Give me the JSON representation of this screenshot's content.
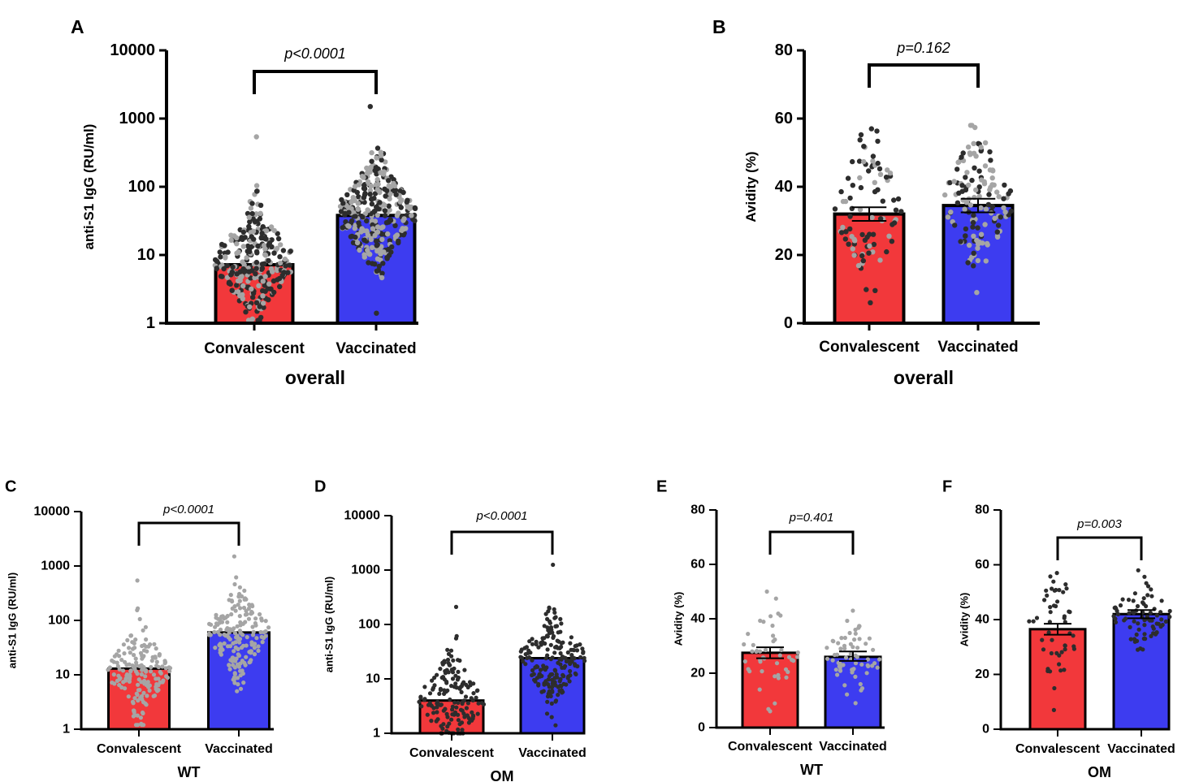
{
  "figure": {
    "panel_count": 6
  },
  "colors": {
    "convalescent_bar": "#f2383b",
    "vaccinated_bar": "#3d3cf0",
    "dot_light": "#a5a5a5",
    "dot_dark": "#2d2d2d",
    "axis": "#000000"
  },
  "chart_data": [
    {
      "panel_letter": "A",
      "type": "bar",
      "scale": "log",
      "title": "overall",
      "ylabel": "anti-S1 IgG (RU/ml)",
      "categories": [
        "Convalescent",
        "Vaccinated"
      ],
      "values": [
        7.2,
        38
      ],
      "ylim": [
        1,
        10000
      ],
      "yticks": [
        1,
        10,
        100,
        1000,
        10000
      ],
      "ytick_labels": [
        "1",
        "10",
        "100",
        "1000",
        "10000"
      ],
      "comparison": "p<0.0001",
      "comparison_italic": true,
      "error_bars": null,
      "scatter": {
        "Convalescent": {
          "n": 300,
          "min": 1.1,
          "max": 540,
          "median": 8,
          "dark_fraction": 0.55
        },
        "Vaccinated": {
          "n": 330,
          "min": 1.4,
          "max": 1500,
          "median": 40,
          "dark_fraction": 0.55
        }
      }
    },
    {
      "panel_letter": "B",
      "type": "bar",
      "scale": "linear",
      "title": "overall",
      "ylabel": "Avidity (%)",
      "categories": [
        "Convalescent",
        "Vaccinated"
      ],
      "values": [
        32,
        34.5
      ],
      "ylim": [
        0,
        80
      ],
      "yticks": [
        0,
        20,
        40,
        60,
        80
      ],
      "ytick_labels": [
        "0",
        "20",
        "40",
        "60",
        "80"
      ],
      "comparison": "p=0.162",
      "comparison_italic": true,
      "error_bars": [
        [
          30,
          34
        ],
        [
          32.5,
          36.5
        ]
      ],
      "scatter": {
        "Convalescent": {
          "n": 90,
          "min": 6,
          "max": 57,
          "median": 34,
          "dark_fraction": 0.55
        },
        "Vaccinated": {
          "n": 140,
          "min": 9,
          "max": 58,
          "median": 36,
          "dark_fraction": 0.5
        }
      }
    },
    {
      "panel_letter": "C",
      "type": "bar",
      "scale": "log",
      "title": "WT",
      "ylabel": "anti-S1 IgG (RU/ml)",
      "categories": [
        "Convalescent",
        "Vaccinated"
      ],
      "values": [
        13,
        60
      ],
      "ylim": [
        1,
        10000
      ],
      "yticks": [
        1,
        10,
        100,
        1000,
        10000
      ],
      "ytick_labels": [
        "1",
        "10",
        "100",
        "1000",
        "10000"
      ],
      "comparison": "p<0.0001",
      "comparison_italic": true,
      "error_bars": null,
      "scatter": {
        "Convalescent": {
          "n": 170,
          "min": 1.2,
          "max": 540,
          "median": 12,
          "dark_fraction": 0.0
        },
        "Vaccinated": {
          "n": 180,
          "min": 5,
          "max": 1500,
          "median": 60,
          "dark_fraction": 0.0
        }
      }
    },
    {
      "panel_letter": "D",
      "type": "bar",
      "scale": "log",
      "title": "OM",
      "ylabel": "anti-S1 IgG (RU/ml)",
      "categories": [
        "Convalescent",
        "Vaccinated"
      ],
      "values": [
        4,
        24
      ],
      "ylim": [
        1,
        10000
      ],
      "yticks": [
        1,
        10,
        100,
        1000,
        10000
      ],
      "ytick_labels": [
        "1",
        "10",
        "100",
        "1000",
        "10000"
      ],
      "comparison": "p<0.0001",
      "comparison_italic": true,
      "error_bars": null,
      "scatter": {
        "Convalescent": {
          "n": 160,
          "min": 1.0,
          "max": 210,
          "median": 4,
          "dark_fraction": 1.0
        },
        "Vaccinated": {
          "n": 190,
          "min": 1.4,
          "max": 1250,
          "median": 25,
          "dark_fraction": 1.0
        }
      }
    },
    {
      "panel_letter": "E",
      "type": "bar",
      "scale": "linear",
      "title": "WT",
      "ylabel": "Avidity (%)",
      "categories": [
        "Convalescent",
        "Vaccinated"
      ],
      "values": [
        27.5,
        26
      ],
      "ylim": [
        0,
        80
      ],
      "yticks": [
        0,
        20,
        40,
        60,
        80
      ],
      "ytick_labels": [
        "0",
        "20",
        "40",
        "60",
        "80"
      ],
      "comparison": "p=0.401",
      "comparison_italic": true,
      "error_bars": [
        [
          25.5,
          29.5
        ],
        [
          24.5,
          28
        ]
      ],
      "scatter": {
        "Convalescent": {
          "n": 45,
          "min": 6,
          "max": 50,
          "median": 28,
          "dark_fraction": 0.0
        },
        "Vaccinated": {
          "n": 65,
          "min": 9,
          "max": 43,
          "median": 26,
          "dark_fraction": 0.0
        }
      }
    },
    {
      "panel_letter": "F",
      "type": "bar",
      "scale": "linear",
      "title": "OM",
      "ylabel": "Avidity (%)",
      "categories": [
        "Convalescent",
        "Vaccinated"
      ],
      "values": [
        36.5,
        42
      ],
      "ylim": [
        0,
        80
      ],
      "yticks": [
        0,
        20,
        40,
        60,
        80
      ],
      "ytick_labels": [
        "0",
        "20",
        "40",
        "60",
        "80"
      ],
      "comparison": "p=0.003",
      "comparison_italic": true,
      "error_bars": [
        [
          34.5,
          38.5
        ],
        [
          40.5,
          43.5
        ]
      ],
      "scatter": {
        "Convalescent": {
          "n": 50,
          "min": 7,
          "max": 57,
          "median": 38,
          "dark_fraction": 1.0
        },
        "Vaccinated": {
          "n": 75,
          "min": 29,
          "max": 58,
          "median": 42,
          "dark_fraction": 1.0
        }
      }
    }
  ]
}
